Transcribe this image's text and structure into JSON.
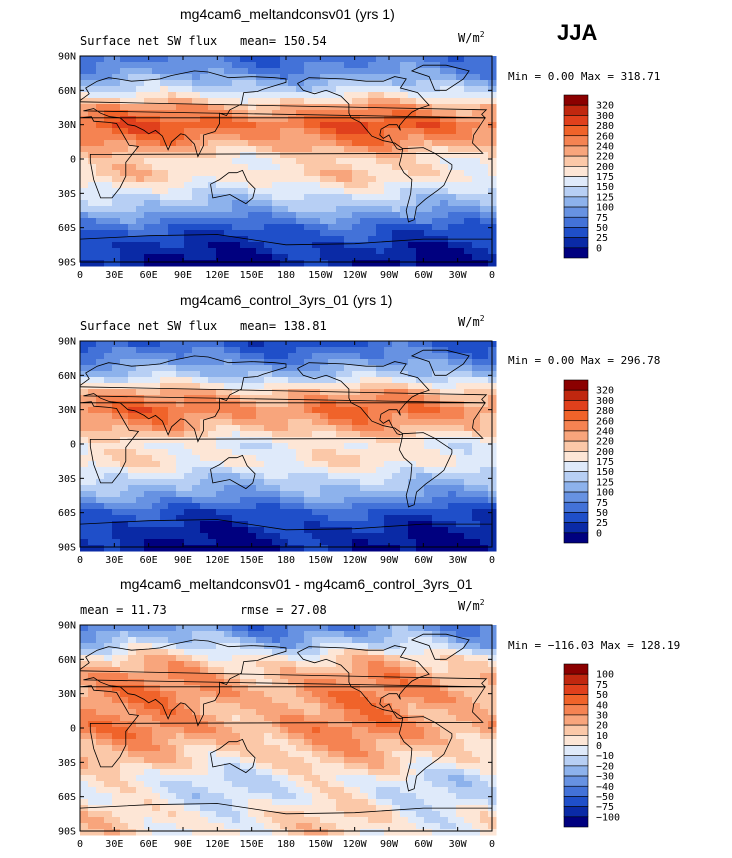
{
  "season": "JJA",
  "colorbars": {
    "absolute": {
      "levels": [
        "320",
        "300",
        "280",
        "260",
        "240",
        "220",
        "200",
        "175",
        "150",
        "125",
        "100",
        "75",
        "50",
        "25",
        "0"
      ],
      "colors": [
        "#8b0000",
        "#c0270f",
        "#e0401c",
        "#f0632a",
        "#f58352",
        "#f8a57c",
        "#fbc8a8",
        "#fde6d6",
        "#dfeafa",
        "#b7cff4",
        "#8db2ec",
        "#6792e2",
        "#4372d8",
        "#1f4fc9",
        "#0a2aa6",
        "#00007f"
      ]
    },
    "difference": {
      "levels": [
        "100",
        "75",
        "50",
        "40",
        "30",
        "20",
        "10",
        "0",
        "−10",
        "−20",
        "−30",
        "−40",
        "−50",
        "−75",
        "−100"
      ],
      "colors": [
        "#8b0000",
        "#c0270f",
        "#e0401c",
        "#f0632a",
        "#f58352",
        "#f8a57c",
        "#fbc8a8",
        "#fde6d6",
        "#dfeafa",
        "#b7cff4",
        "#8db2ec",
        "#6792e2",
        "#4372d8",
        "#1f4fc9",
        "#0a2aa6",
        "#00007f"
      ]
    }
  },
  "axes": {
    "lat_ticks": [
      "90N",
      "60N",
      "30N",
      "0",
      "30S",
      "60S",
      "90S"
    ],
    "lon_ticks": [
      "0",
      "30E",
      "60E",
      "90E",
      "120E",
      "150E",
      "180",
      "150W",
      "120W",
      "90W",
      "60W",
      "30W",
      "0"
    ]
  },
  "panels": [
    {
      "title": "mg4cam6_meltandconsv01 (yrs 1)",
      "left_label": "Surface net SW flux",
      "mean_text": "mean= 150.54",
      "units_base": "W/m",
      "units_exp": "2",
      "minmax": "Min =   0.00 Max = 318.71",
      "scale": "absolute",
      "chart_data": {
        "type": "heatmap",
        "variable": "Surface net SW flux",
        "mean": 150.54,
        "min": 0.0,
        "max": 318.71,
        "zonal_pattern_lat": [
          90,
          75,
          60,
          45,
          30,
          15,
          0,
          -15,
          -30,
          -45,
          -60,
          -75,
          -90
        ],
        "zonal_pattern_value": [
          60,
          90,
          150,
          230,
          270,
          240,
          190,
          200,
          150,
          110,
          50,
          20,
          0
        ]
      }
    },
    {
      "title": "mg4cam6_control_3yrs_01 (yrs 1)",
      "left_label": "Surface net SW flux",
      "mean_text": "mean= 138.81",
      "units_base": "W/m",
      "units_exp": "2",
      "minmax": "Min =   0.00 Max = 296.78",
      "scale": "absolute",
      "chart_data": {
        "type": "heatmap",
        "variable": "Surface net SW flux",
        "mean": 138.81,
        "min": 0.0,
        "max": 296.78,
        "zonal_pattern_lat": [
          90,
          75,
          60,
          45,
          30,
          15,
          0,
          -15,
          -30,
          -45,
          -60,
          -75,
          -90
        ],
        "zonal_pattern_value": [
          40,
          80,
          130,
          220,
          255,
          225,
          170,
          190,
          140,
          100,
          40,
          15,
          0
        ]
      }
    },
    {
      "title": "mg4cam6_meltandconsv01 - mg4cam6_control_3yrs_01",
      "left_label": "mean =   11.73",
      "mean_text": "rmse =   27.08",
      "units_base": "W/m",
      "units_exp": "2",
      "minmax": "Min = −116.03 Max = 128.19",
      "scale": "difference",
      "chart_data": {
        "type": "heatmap",
        "variable": "difference",
        "mean": 11.73,
        "rmse": 27.08,
        "min": -116.03,
        "max": 128.19,
        "zonal_pattern_lat": [
          90,
          75,
          60,
          45,
          30,
          15,
          0,
          -15,
          -30,
          -45,
          -60,
          -75,
          -90
        ],
        "zonal_pattern_value": [
          -40,
          -20,
          10,
          25,
          30,
          25,
          30,
          20,
          10,
          -5,
          -5,
          5,
          5
        ]
      }
    }
  ]
}
